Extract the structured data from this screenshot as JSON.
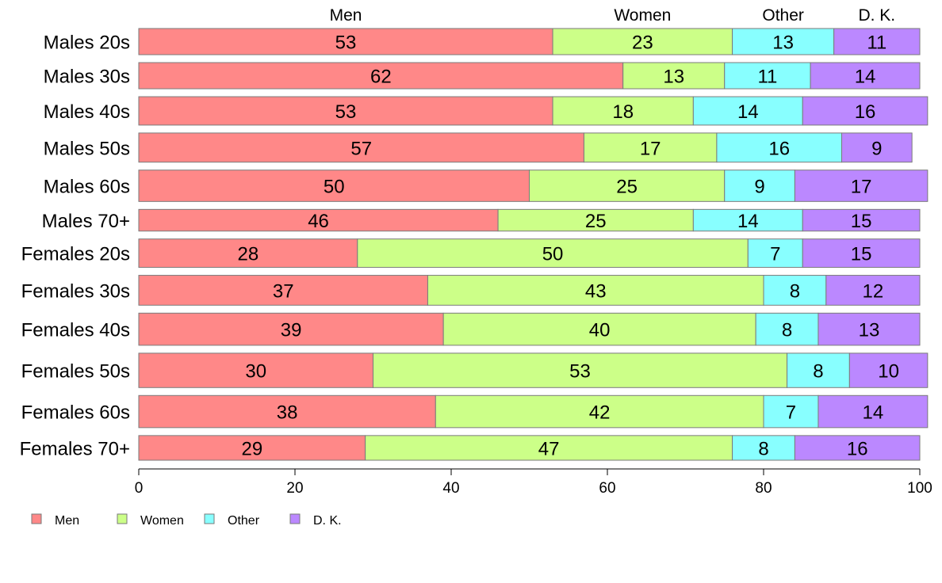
{
  "chart_data": {
    "type": "bar",
    "orientation": "horizontal",
    "stacked": true,
    "categories": [
      "Males 20s",
      "Males 30s",
      "Males 40s",
      "Males 50s",
      "Males 60s",
      "Males 70+",
      "Females 20s",
      "Females 30s",
      "Females 40s",
      "Females 50s",
      "Females 60s",
      "Females 70+"
    ],
    "row_weights": [
      35,
      35,
      38,
      39,
      42,
      29,
      38,
      40,
      43,
      46,
      43,
      33
    ],
    "series": [
      {
        "name": "Men",
        "color": "#ff8888",
        "values": [
          53,
          62,
          53,
          57,
          50,
          46,
          28,
          37,
          39,
          30,
          38,
          29
        ]
      },
      {
        "name": "Women",
        "color": "#ccff88",
        "values": [
          23,
          13,
          18,
          17,
          25,
          25,
          50,
          43,
          40,
          53,
          42,
          47
        ]
      },
      {
        "name": "Other",
        "color": "#88ffff",
        "values": [
          13,
          11,
          14,
          16,
          9,
          14,
          7,
          8,
          8,
          8,
          7,
          8
        ]
      },
      {
        "name": "D. K.",
        "color": "#bb88ff",
        "values": [
          11,
          14,
          16,
          9,
          17,
          15,
          15,
          12,
          13,
          10,
          14,
          16
        ]
      }
    ],
    "xlim": [
      0,
      100
    ],
    "xticks": [
      0,
      20,
      40,
      60,
      80,
      100
    ],
    "top_labels": [
      "Men",
      "Women",
      "Other",
      "D. K."
    ],
    "legend": {
      "position": "bottom-left",
      "entries": [
        "Men",
        "Women",
        "Other",
        "D. K."
      ]
    },
    "grid": false,
    "title": "",
    "xlabel": "",
    "ylabel": ""
  }
}
